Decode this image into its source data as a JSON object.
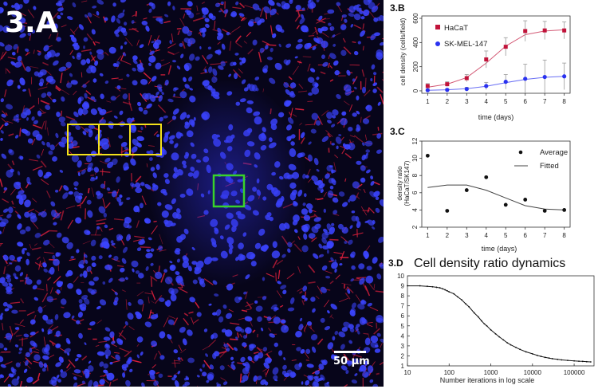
{
  "micrograph": {
    "panel_label": "3.A",
    "scalebar_text": "50 µm",
    "colors": {
      "nuclei": "#3b44ff",
      "membrane": "#e0203c",
      "background": "#07051a",
      "roi_yellow": "#f4e21a",
      "roi_green": "#39d22b"
    }
  },
  "chart_data": [
    {
      "panel_label": "3.B",
      "type": "line",
      "xlabel": "time (days)",
      "ylabel": "cell density (cells/field)",
      "xlim": [
        0.7,
        8.3
      ],
      "ylim": [
        -20,
        620
      ],
      "xticks": [
        1,
        2,
        3,
        4,
        5,
        6,
        7,
        8
      ],
      "yticks": [
        0,
        200,
        400,
        600
      ],
      "legend_position": "top-left",
      "series": [
        {
          "name": "HaCaT",
          "color": "#c1133a",
          "marker": "square",
          "x": [
            1,
            2,
            3,
            4,
            5,
            6,
            7,
            8
          ],
          "values": [
            40,
            55,
            105,
            260,
            365,
            495,
            500,
            500
          ],
          "error": [
            20,
            20,
            30,
            70,
            75,
            85,
            75,
            70
          ],
          "fit": [
            30,
            55,
            110,
            230,
            370,
            465,
            495,
            505
          ]
        },
        {
          "name": "SK-MEL-147",
          "color": "#2a32f0",
          "marker": "circle",
          "x": [
            1,
            2,
            3,
            4,
            5,
            6,
            7,
            8
          ],
          "values": [
            5,
            8,
            15,
            40,
            75,
            100,
            115,
            120
          ],
          "error": [
            10,
            10,
            15,
            30,
            60,
            120,
            140,
            110
          ],
          "fit": [
            5,
            9,
            18,
            38,
            68,
            95,
            112,
            120
          ]
        }
      ]
    },
    {
      "panel_label": "3.C",
      "type": "scatter",
      "xlabel": "time (days)",
      "ylabel": "density ratio (HaCaT/SK147)",
      "xlim": [
        0.7,
        8.3
      ],
      "ylim": [
        2,
        12
      ],
      "xticks": [
        1,
        2,
        3,
        4,
        5,
        6,
        7,
        8
      ],
      "yticks": [
        2,
        4,
        6,
        8,
        10,
        12
      ],
      "legend_position": "top-right",
      "series": [
        {
          "name": "Average",
          "style": "points",
          "x": [
            1,
            2,
            3,
            4,
            5,
            6,
            7,
            8
          ],
          "values": [
            10.3,
            3.9,
            6.3,
            7.8,
            4.6,
            5.2,
            3.9,
            4.0
          ]
        },
        {
          "name": "Fitted",
          "style": "line",
          "x": [
            1,
            2,
            3,
            4,
            5,
            6,
            7,
            8
          ],
          "values": [
            6.6,
            6.9,
            6.9,
            6.3,
            5.4,
            4.5,
            4.1,
            4.0
          ]
        }
      ]
    },
    {
      "panel_label": "3.D",
      "title": "Cell density ratio dynamics",
      "type": "line",
      "xlabel": "Number iterations in log scale",
      "ylabel": "",
      "xscale": "log",
      "xlim": [
        10,
        300000
      ],
      "ylim": [
        1,
        10
      ],
      "xticks": [
        10,
        100,
        1000,
        10000,
        100000
      ],
      "xtick_labels": [
        "10",
        "100",
        "1000",
        "10000",
        "100000"
      ],
      "yticks": [
        1,
        2,
        3,
        4,
        5,
        6,
        7,
        8,
        9,
        10
      ],
      "grid": false,
      "series": [
        {
          "name": "",
          "x": [
            10,
            20,
            30,
            40,
            50,
            60,
            70,
            80,
            90,
            100,
            130,
            160,
            200,
            250,
            300,
            400,
            500,
            600,
            700,
            800,
            1000,
            1300,
            1600,
            2000,
            2500,
            3000,
            4000,
            5000,
            7000,
            10000,
            13000,
            16000,
            20000,
            25000,
            30000,
            40000,
            50000,
            70000,
            100000,
            130000,
            160000,
            200000,
            250000
          ],
          "values": [
            9.0,
            9.0,
            8.95,
            8.9,
            8.85,
            8.8,
            8.7,
            8.6,
            8.5,
            8.4,
            8.2,
            7.9,
            7.6,
            7.2,
            6.9,
            6.3,
            5.9,
            5.5,
            5.2,
            5.0,
            4.6,
            4.2,
            3.9,
            3.6,
            3.3,
            3.1,
            2.85,
            2.65,
            2.4,
            2.2,
            2.05,
            1.95,
            1.85,
            1.78,
            1.72,
            1.65,
            1.6,
            1.55,
            1.5,
            1.47,
            1.45,
            1.42,
            1.4
          ]
        }
      ]
    }
  ]
}
